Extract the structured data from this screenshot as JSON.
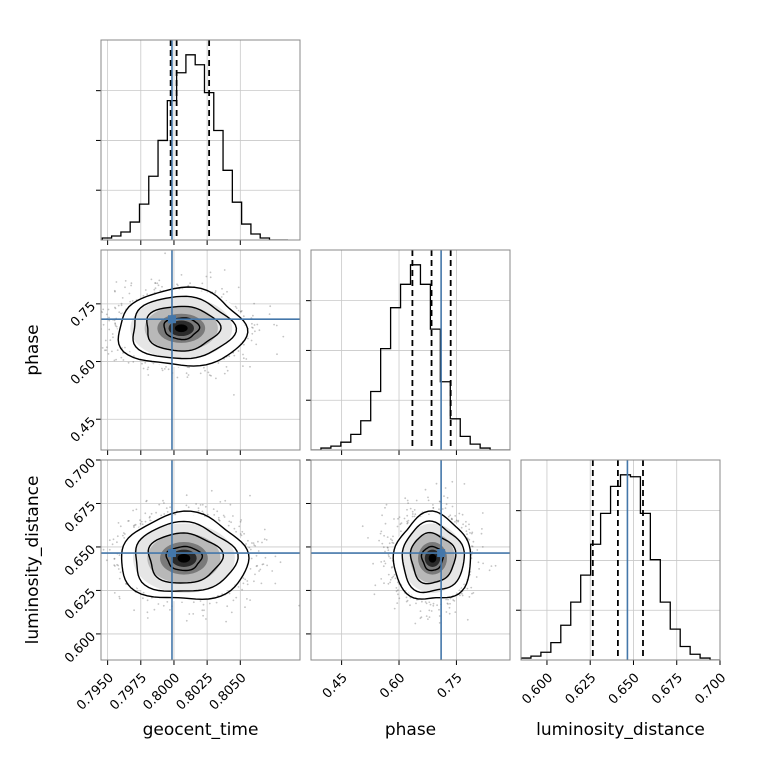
{
  "chart_data": {
    "type": "corner",
    "parameters": [
      {
        "name": "geocent_time",
        "range": [
          0.7945,
          0.8095
        ],
        "ticks": [
          0.795,
          0.7975,
          0.8,
          0.8025,
          0.805
        ],
        "tick_labels": [
          "0.7950",
          "0.7975",
          "0.8000",
          "0.8025",
          "0.8050"
        ],
        "truth": 0.79985,
        "quantiles": [
          0.79975,
          0.8002,
          0.80265
        ],
        "hist_bins_start": 0.7946,
        "hist_bin_width": 0.0007,
        "hist_counts": [
          1,
          2,
          4,
          9,
          18,
          32,
          50,
          70,
          84,
          93,
          88,
          74,
          55,
          35,
          19,
          8,
          3,
          1,
          0,
          0
        ]
      },
      {
        "name": "phase",
        "range": [
          0.37,
          0.89
        ],
        "ticks": [
          0.45,
          0.6,
          0.75
        ],
        "tick_labels": [
          "0.45",
          "0.60",
          "0.75"
        ],
        "truth": 0.71,
        "quantiles": [
          0.635,
          0.685,
          0.735
        ],
        "hist_bins_start": 0.37,
        "hist_bin_width": 0.026,
        "hist_counts": [
          0,
          1,
          2,
          4,
          8,
          15,
          30,
          52,
          73,
          85,
          95,
          85,
          62,
          35,
          16,
          7,
          3,
          1,
          0,
          0
        ]
      },
      {
        "name": "luminosity_distance",
        "range": [
          0.585,
          0.7
        ],
        "ticks": [
          0.6,
          0.625,
          0.65,
          0.675,
          0.7
        ],
        "tick_labels": [
          "0.600",
          "0.625",
          "0.650",
          "0.675",
          "0.700"
        ],
        "truth": 0.6465,
        "quantiles": [
          0.6265,
          0.641,
          0.6555
        ],
        "hist_bins_start": 0.585,
        "hist_bin_width": 0.00575,
        "hist_counts": [
          1,
          2,
          4,
          9,
          18,
          30,
          44,
          60,
          76,
          90,
          96,
          95,
          76,
          52,
          30,
          16,
          7,
          3,
          1,
          0
        ]
      }
    ],
    "pairs": [
      {
        "x": "geocent_time",
        "y": "phase",
        "center": [
          0.80055,
          0.6865
        ],
        "spread": [
          0.0024,
          0.0505
        ],
        "y_ticks": [
          0.45,
          0.6,
          0.75
        ],
        "y_tick_labels": [
          "0.45",
          "0.60",
          "0.75"
        ]
      },
      {
        "x": "geocent_time",
        "y": "luminosity_distance",
        "center": [
          0.80075,
          0.6435
        ],
        "spread": [
          0.0024,
          0.0125
        ],
        "y_ticks": [
          0.6,
          0.625,
          0.65,
          0.675,
          0.7
        ],
        "y_tick_labels": [
          "0.600",
          "0.625",
          "0.650",
          "0.675",
          "0.700"
        ]
      },
      {
        "x": "phase",
        "y": "luminosity_distance",
        "center": [
          0.6875,
          0.6435
        ],
        "spread": [
          0.0505,
          0.0125
        ],
        "y_ticks": [],
        "y_tick_labels": []
      }
    ],
    "grid": true,
    "truth_color": "#4477aa",
    "contour_color": "#000000",
    "quantile_line_style": "dashed"
  }
}
